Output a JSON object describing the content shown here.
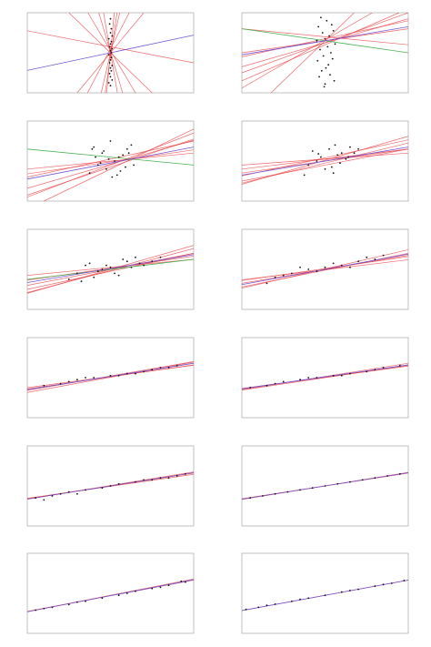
{
  "colors": {
    "sample_line": "#e8353a",
    "ols_line": "#6b4bd6",
    "alt_line": "#3fae4a",
    "point": "#111111",
    "frame": "#999999",
    "band": "#f4a6a8"
  },
  "chart_data": [
    {
      "type": "scatter",
      "xlim": [
        -1,
        1
      ],
      "ylim": [
        -1,
        1
      ],
      "grid": false,
      "x": [
        0.0,
        -0.01,
        0.01,
        0.0,
        0.02,
        -0.02,
        0.01,
        0.0,
        -0.01,
        0.02,
        0.0,
        0.01,
        -0.02,
        0.01,
        0.0,
        -0.01,
        0.02,
        0.0,
        0.01,
        -0.01,
        0.0,
        0.02,
        -0.02,
        0.0
      ],
      "y": [
        0.85,
        0.72,
        0.6,
        0.5,
        0.42,
        0.35,
        0.28,
        0.22,
        0.15,
        0.1,
        0.05,
        0.0,
        -0.05,
        -0.12,
        -0.18,
        -0.25,
        -0.32,
        -0.38,
        -0.45,
        -0.52,
        -0.6,
        -0.68,
        -0.75,
        -0.82
      ],
      "lines": [
        {
          "role": "ols",
          "slope": 0.44,
          "intercept": 0.0
        },
        {
          "role": "sample",
          "slope": 9.0,
          "intercept": 0.0
        },
        {
          "role": "sample",
          "slope": -7.0,
          "intercept": 0.02
        },
        {
          "role": "sample",
          "slope": 14.0,
          "intercept": -0.1
        },
        {
          "role": "sample",
          "slope": -3.5,
          "intercept": 0.05
        },
        {
          "role": "sample",
          "slope": 4.0,
          "intercept": 0.1
        },
        {
          "role": "sample",
          "slope": -0.4,
          "intercept": 0.15
        },
        {
          "role": "sample",
          "slope": 22.0,
          "intercept": 0.0
        },
        {
          "role": "sample",
          "slope": -12.0,
          "intercept": 0.0
        },
        {
          "role": "sample",
          "slope": 2.5,
          "intercept": 0.0
        },
        {
          "role": "sample",
          "slope": -2.0,
          "intercept": 0.0
        }
      ]
    },
    {
      "type": "scatter",
      "xlim": [
        -1,
        1
      ],
      "ylim": [
        -1,
        1
      ],
      "grid": false,
      "x": [
        -0.05,
        0.02,
        0.08,
        -0.08,
        0.1,
        -0.03,
        0.05,
        0.0,
        -0.1,
        0.12,
        0.03,
        -0.06,
        0.07,
        -0.02,
        0.09,
        -0.09,
        0.04,
        0.01,
        -0.04,
        0.06,
        -0.07,
        0.11,
        0.0,
        -0.01
      ],
      "y": [
        0.88,
        0.8,
        0.7,
        0.65,
        0.55,
        0.5,
        0.42,
        0.35,
        0.3,
        0.22,
        0.15,
        0.08,
        0.0,
        -0.08,
        -0.15,
        -0.2,
        -0.3,
        -0.38,
        -0.45,
        -0.55,
        -0.6,
        -0.7,
        -0.78,
        -0.85
      ],
      "lines": [
        {
          "role": "ols",
          "slope": 0.35,
          "intercept": 0.3
        },
        {
          "role": "alt",
          "slope": -0.3,
          "intercept": 0.3
        },
        {
          "role": "sample",
          "slope": 0.6,
          "intercept": 0.25
        },
        {
          "role": "sample",
          "slope": 1.2,
          "intercept": 0.32
        },
        {
          "role": "sample",
          "slope": 0.9,
          "intercept": 0.2
        },
        {
          "role": "sample",
          "slope": -0.2,
          "intercept": 0.4
        },
        {
          "role": "sample",
          "slope": 0.3,
          "intercept": 0.3
        },
        {
          "role": "sample",
          "slope": 2.0,
          "intercept": 0.3
        },
        {
          "role": "sample",
          "slope": 0.45,
          "intercept": 0.35
        },
        {
          "role": "sample",
          "slope": 0.75,
          "intercept": 0.25
        }
      ]
    },
    {
      "type": "scatter",
      "xlim": [
        -1,
        1
      ],
      "ylim": [
        -1,
        1
      ],
      "grid": false,
      "x": [
        -0.2,
        -0.1,
        0.0,
        0.1,
        0.2,
        -0.15,
        0.05,
        0.15,
        -0.05,
        0.25,
        -0.25,
        0.08,
        -0.08,
        0.18,
        -0.18,
        0.12,
        -0.12,
        0.02,
        -0.02,
        0.22,
        0.28,
        -0.22
      ],
      "y": [
        0.35,
        0.2,
        0.5,
        0.1,
        0.3,
        -0.1,
        0.0,
        0.15,
        -0.2,
        0.4,
        -0.3,
        -0.35,
        0.25,
        -0.15,
        0.1,
        -0.25,
        -0.05,
        -0.4,
        0.05,
        0.2,
        -0.1,
        0.3
      ],
      "lines": [
        {
          "role": "ols",
          "slope": 0.4,
          "intercept": -0.05
        },
        {
          "role": "alt",
          "slope": -0.2,
          "intercept": 0.1
        },
        {
          "role": "sample",
          "slope": 0.6,
          "intercept": -0.08
        },
        {
          "role": "sample",
          "slope": 0.8,
          "intercept": -0.1
        },
        {
          "role": "sample",
          "slope": 0.3,
          "intercept": -0.02
        },
        {
          "role": "sample",
          "slope": 1.0,
          "intercept": -0.2
        },
        {
          "role": "sample",
          "slope": 0.45,
          "intercept": 0.05
        },
        {
          "role": "sample",
          "slope": 0.2,
          "intercept": 0.0
        },
        {
          "role": "sample",
          "slope": 0.7,
          "intercept": -0.15
        }
      ]
    },
    {
      "type": "scatter",
      "xlim": [
        -1,
        1
      ],
      "ylim": [
        -1,
        1
      ],
      "grid": false,
      "x": [
        -0.15,
        -0.05,
        0.05,
        0.15,
        0.25,
        -0.2,
        0.0,
        0.1,
        -0.1,
        0.2,
        0.3,
        -0.25,
        0.08,
        -0.08,
        0.18,
        0.12,
        0.35,
        0.4,
        0.28
      ],
      "y": [
        0.25,
        0.1,
        0.3,
        0.15,
        0.05,
        -0.1,
        -0.2,
        -0.3,
        0.0,
        0.2,
        0.35,
        -0.35,
        -0.15,
        0.18,
        -0.05,
        0.4,
        0.2,
        0.3,
        0.1
      ],
      "lines": [
        {
          "role": "ols",
          "slope": 0.35,
          "intercept": 0.0
        },
        {
          "role": "sample",
          "slope": 0.3,
          "intercept": 0.0
        },
        {
          "role": "sample",
          "slope": 0.5,
          "intercept": -0.05
        },
        {
          "role": "sample",
          "slope": 0.25,
          "intercept": 0.05
        },
        {
          "role": "sample",
          "slope": 0.6,
          "intercept": 0.02
        },
        {
          "role": "sample",
          "slope": 0.4,
          "intercept": -0.1
        },
        {
          "role": "sample",
          "slope": 0.15,
          "intercept": 0.05
        },
        {
          "role": "sample",
          "slope": 0.45,
          "intercept": 0.08
        }
      ]
    },
    {
      "type": "scatter",
      "xlim": [
        -1,
        1
      ],
      "ylim": [
        -1,
        1
      ],
      "grid": false,
      "x": [
        -0.4,
        -0.3,
        -0.2,
        -0.1,
        0.0,
        0.1,
        0.2,
        0.3,
        0.4,
        -0.35,
        -0.25,
        -0.15,
        -0.05,
        0.05,
        0.15,
        0.25,
        0.35,
        0.5,
        0.6,
        -0.5
      ],
      "y": [
        -0.1,
        0.1,
        -0.2,
        0.0,
        0.05,
        -0.15,
        0.2,
        0.3,
        0.1,
        -0.3,
        0.15,
        -0.05,
        0.1,
        -0.1,
        0.25,
        0.05,
        0.15,
        0.2,
        0.3,
        -0.25
      ],
      "lines": [
        {
          "role": "ols",
          "slope": 0.35,
          "intercept": 0.02
        },
        {
          "role": "alt",
          "slope": 0.25,
          "intercept": 0.0
        },
        {
          "role": "sample",
          "slope": 0.4,
          "intercept": 0.0
        },
        {
          "role": "sample",
          "slope": 0.55,
          "intercept": -0.03
        },
        {
          "role": "sample",
          "slope": 0.3,
          "intercept": 0.03
        },
        {
          "role": "sample",
          "slope": 0.2,
          "intercept": 0.05
        },
        {
          "role": "sample",
          "slope": 0.45,
          "intercept": -0.05
        },
        {
          "role": "sample",
          "slope": 0.6,
          "intercept": 0.0
        }
      ]
    },
    {
      "type": "scatter",
      "xlim": [
        -1,
        1
      ],
      "ylim": [
        -1,
        1
      ],
      "grid": false,
      "x": [
        -0.6,
        -0.4,
        -0.2,
        0.0,
        0.2,
        0.4,
        0.6,
        -0.5,
        -0.3,
        -0.1,
        0.1,
        0.3,
        0.5,
        0.7,
        -0.7
      ],
      "y": [
        -0.2,
        -0.1,
        0.0,
        0.05,
        0.1,
        0.2,
        0.25,
        -0.15,
        0.05,
        -0.05,
        0.15,
        0.05,
        0.3,
        0.35,
        -0.35
      ],
      "lines": [
        {
          "role": "ols",
          "slope": 0.38,
          "intercept": 0.0
        },
        {
          "role": "sample",
          "slope": 0.35,
          "intercept": 0.0
        },
        {
          "role": "sample",
          "slope": 0.42,
          "intercept": -0.02
        },
        {
          "role": "sample",
          "slope": 0.3,
          "intercept": 0.02
        },
        {
          "role": "sample",
          "slope": 0.48,
          "intercept": 0.01
        },
        {
          "role": "sample",
          "slope": 0.25,
          "intercept": -0.01
        }
      ]
    },
    {
      "type": "scatter",
      "xlim": [
        -1,
        1
      ],
      "ylim": [
        -1,
        1
      ],
      "grid": false,
      "x": [
        -0.8,
        -0.6,
        -0.4,
        -0.2,
        0.0,
        0.2,
        0.4,
        0.6,
        0.8,
        -0.5,
        -0.3,
        0.1,
        0.3,
        0.5,
        0.7
      ],
      "y": [
        -0.2,
        -0.15,
        -0.05,
        0.0,
        0.05,
        0.1,
        0.15,
        0.25,
        0.3,
        -0.1,
        0.0,
        0.05,
        0.1,
        0.2,
        0.25
      ],
      "lines": [
        {
          "role": "ols",
          "slope": 0.33,
          "intercept": 0.03
        },
        {
          "role": "sample",
          "slope": 0.3,
          "intercept": 0.02
        },
        {
          "role": "sample",
          "slope": 0.36,
          "intercept": 0.04
        },
        {
          "role": "sample",
          "slope": 0.28,
          "intercept": 0.03
        },
        {
          "role": "sample",
          "slope": 0.38,
          "intercept": 0.01
        }
      ]
    },
    {
      "type": "scatter",
      "xlim": [
        -1,
        1
      ],
      "ylim": [
        -1,
        1
      ],
      "grid": false,
      "x": [
        -0.9,
        -0.7,
        -0.5,
        -0.3,
        -0.1,
        0.1,
        0.3,
        0.5,
        0.7,
        0.9,
        -0.6,
        -0.2,
        0.2,
        0.6
      ],
      "y": [
        -0.25,
        -0.2,
        -0.1,
        -0.05,
        0.0,
        0.05,
        0.1,
        0.15,
        0.25,
        0.3,
        -0.15,
        0.0,
        0.05,
        0.2
      ],
      "lines": [
        {
          "role": "ols",
          "slope": 0.3,
          "intercept": 0.02
        },
        {
          "role": "sample",
          "slope": 0.28,
          "intercept": 0.01
        },
        {
          "role": "sample",
          "slope": 0.33,
          "intercept": 0.03
        },
        {
          "role": "sample",
          "slope": 0.31,
          "intercept": 0.0
        }
      ]
    },
    {
      "type": "scatter",
      "xlim": [
        -1,
        1
      ],
      "ylim": [
        -1,
        1
      ],
      "grid": false,
      "x": [
        -0.9,
        -0.7,
        -0.5,
        -0.3,
        -0.1,
        0.1,
        0.3,
        0.5,
        0.7,
        0.9,
        -0.8,
        -0.4,
        0.0,
        0.4,
        0.8,
        -0.6,
        0.6
      ],
      "y": [
        -0.3,
        -0.25,
        -0.15,
        -0.1,
        -0.05,
        0.05,
        0.1,
        0.15,
        0.2,
        0.3,
        -0.35,
        -0.2,
        0.0,
        0.15,
        0.25,
        -0.2,
        0.2
      ],
      "lines": [
        {
          "role": "ols",
          "slope": 0.33,
          "intercept": 0.0
        },
        {
          "role": "sample",
          "slope": 0.32,
          "intercept": 0.0
        },
        {
          "role": "sample",
          "slope": 0.34,
          "intercept": 0.01
        },
        {
          "role": "sample",
          "slope": 0.3,
          "intercept": -0.01
        }
      ]
    },
    {
      "type": "scatter",
      "xlim": [
        -1,
        1
      ],
      "ylim": [
        -1,
        1
      ],
      "grid": false,
      "x": [
        -0.9,
        -0.75,
        -0.6,
        -0.45,
        -0.3,
        -0.15,
        0.0,
        0.15,
        0.3,
        0.45,
        0.6,
        0.75,
        0.9
      ],
      "y": [
        -0.3,
        -0.25,
        -0.2,
        -0.15,
        -0.1,
        -0.05,
        0.0,
        0.05,
        0.1,
        0.15,
        0.2,
        0.25,
        0.3
      ],
      "lines": [
        {
          "role": "ols",
          "slope": 0.33,
          "intercept": 0.0
        },
        {
          "role": "sample",
          "slope": 0.32,
          "intercept": 0.0
        },
        {
          "role": "sample",
          "slope": 0.34,
          "intercept": 0.0
        }
      ]
    },
    {
      "type": "scatter",
      "xlim": [
        -1,
        1
      ],
      "ylim": [
        -1,
        1
      ],
      "grid": false,
      "x": [
        -0.9,
        -0.7,
        -0.5,
        -0.3,
        -0.1,
        0.1,
        0.3,
        0.5,
        0.7,
        0.9,
        -0.8,
        -0.4,
        0.2,
        0.6,
        0.85
      ],
      "y": [
        -0.42,
        -0.35,
        -0.28,
        -0.2,
        -0.12,
        -0.05,
        0.05,
        0.12,
        0.2,
        0.28,
        -0.38,
        -0.22,
        0.0,
        0.15,
        0.3
      ],
      "lines": [
        {
          "role": "ols",
          "slope": 0.4,
          "intercept": -0.06
        },
        {
          "role": "sample",
          "slope": 0.39,
          "intercept": -0.06
        },
        {
          "role": "sample",
          "slope": 0.41,
          "intercept": -0.05
        }
      ]
    },
    {
      "type": "scatter",
      "xlim": [
        -1,
        1
      ],
      "ylim": [
        -1,
        1
      ],
      "grid": false,
      "x": [
        -0.95,
        -0.8,
        -0.6,
        -0.4,
        -0.2,
        0.0,
        0.2,
        0.4,
        0.6,
        0.8,
        0.95,
        -0.7,
        -0.3,
        0.3,
        0.7
      ],
      "y": [
        -0.4,
        -0.35,
        -0.27,
        -0.2,
        -0.12,
        -0.05,
        0.03,
        0.1,
        0.18,
        0.25,
        0.32,
        -0.3,
        -0.15,
        0.07,
        0.22
      ],
      "lines": [
        {
          "role": "ols",
          "slope": 0.38,
          "intercept": -0.05
        },
        {
          "role": "sample",
          "slope": 0.38,
          "intercept": -0.05
        }
      ]
    }
  ]
}
